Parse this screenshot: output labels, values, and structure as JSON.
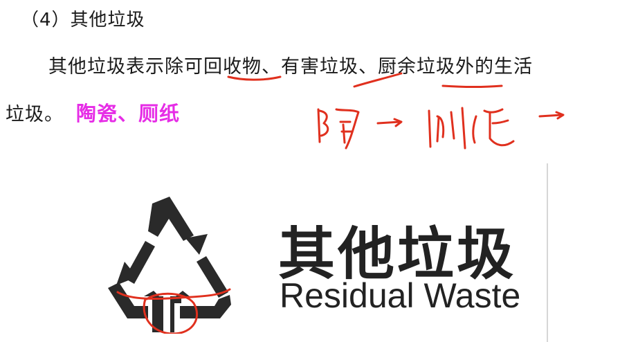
{
  "heading": "（4）其他垃圾",
  "paragraph": {
    "line1": "其他垃圾表示除可回收物、有害垃圾、厨余垃圾外的生活",
    "line2": "垃圾。",
    "examples": "陶瓷、厕纸"
  },
  "sign": {
    "label_cn": "其他垃圾",
    "label_en": "Residual Waste",
    "icon": "recycle-triangle-icon"
  },
  "handwriting": "陶 → 厕纸 →",
  "colors": {
    "accent": "#e62ce6",
    "ink_red": "#e0301e",
    "sign_black": "#2a2a2a"
  }
}
